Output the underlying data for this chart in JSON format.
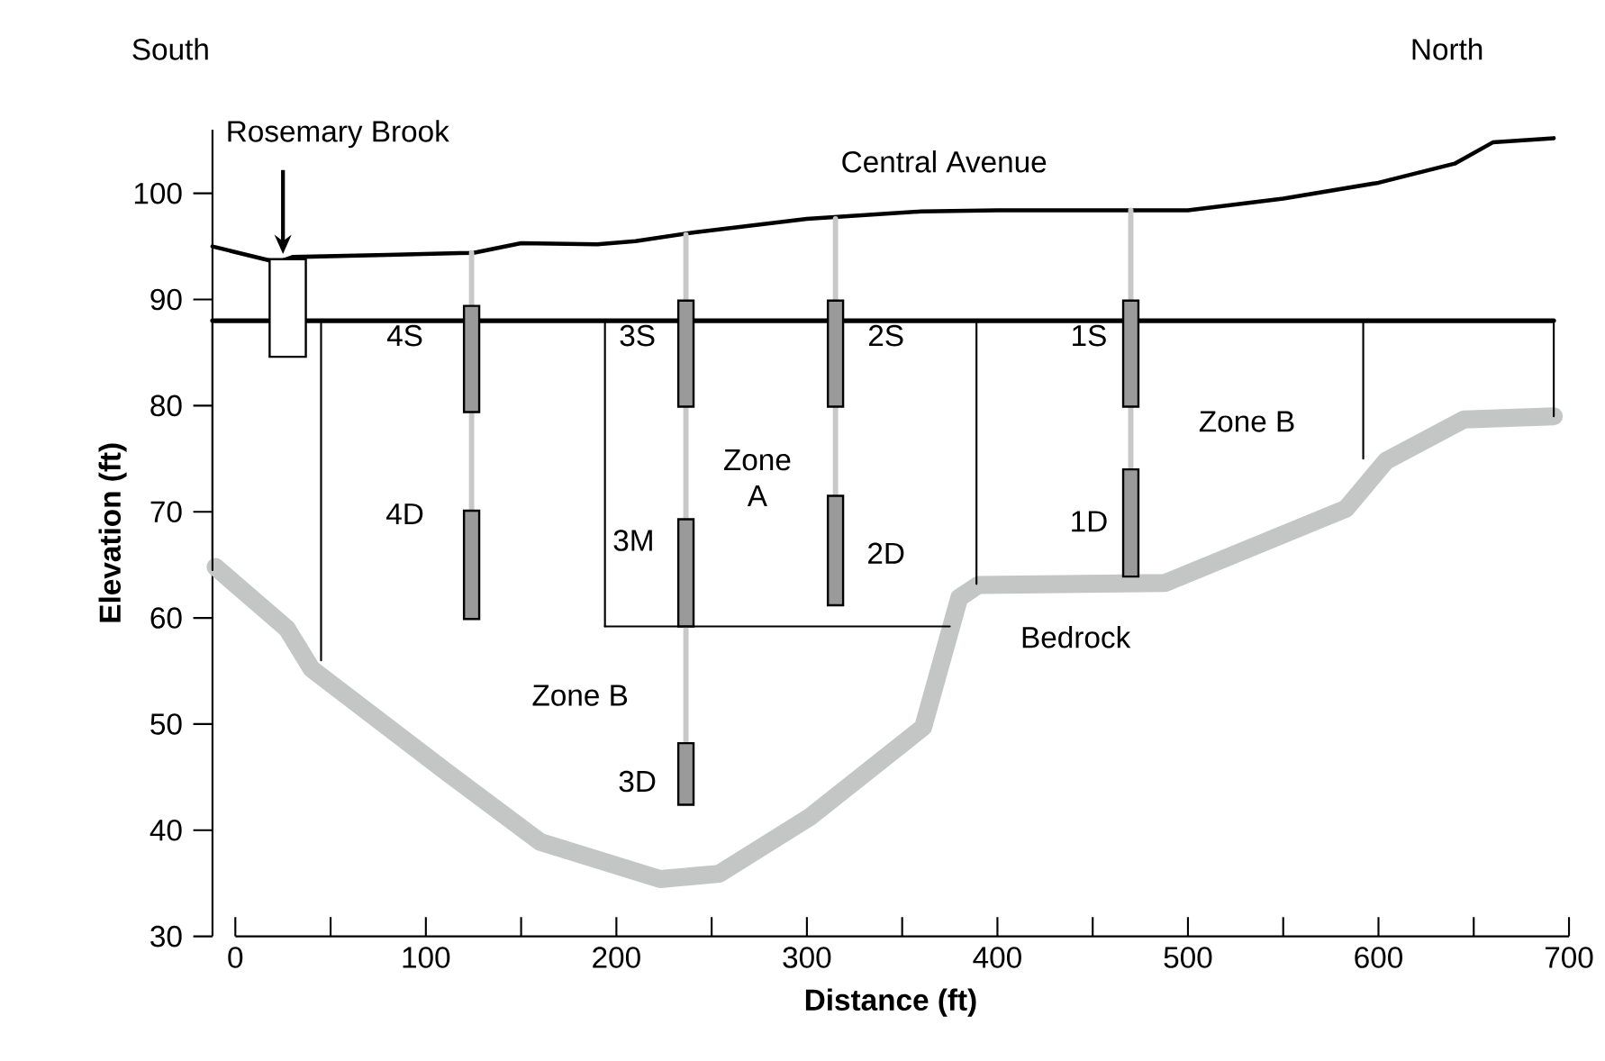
{
  "chart_data": {
    "type": "line",
    "xlabel": "Distance (ft)",
    "ylabel": "Elevation (ft)",
    "xlim": [
      -12,
      700
    ],
    "ylim": [
      30,
      106
    ],
    "xticks": [
      0,
      {
        "value": 50,
        "label": null
      },
      100,
      {
        "value": 150,
        "label": null
      },
      200,
      {
        "value": 250,
        "label": null
      },
      300,
      {
        "value": 350,
        "label": null
      },
      400,
      {
        "value": 450,
        "label": null
      },
      500,
      {
        "value": 550,
        "label": null
      },
      600,
      {
        "value": 650,
        "label": null
      },
      700
    ],
    "yticks": [
      30,
      40,
      50,
      60,
      70,
      80,
      90,
      100
    ],
    "series": [
      {
        "color": "#000000",
        "x": [
          -12,
          22,
          30,
          80,
          125,
          150,
          190,
          210,
          240,
          300,
          360,
          400,
          470,
          500,
          550,
          600,
          640,
          660,
          692
        ],
        "values": [
          95,
          93.5,
          94,
          94.2,
          94.4,
          95.3,
          95.2,
          95.5,
          96.3,
          97.6,
          98.3,
          98.4,
          98.4,
          98.4,
          99.5,
          101,
          102.8,
          104.8,
          105.2
        ]
      },
      {
        "color": "#c4c6c5",
        "x": [
          -10.4,
          27,
          40,
          110,
          160,
          223,
          254,
          302,
          361,
          380,
          390,
          488,
          583,
          604,
          645,
          692
        ],
        "values": [
          64.8,
          59,
          55.2,
          45.6,
          38.9,
          35.4,
          35.9,
          41.3,
          49.7,
          61.9,
          63.1,
          63.3,
          70.3,
          74.8,
          78.7,
          79
        ]
      },
      {
        "color": "#000000",
        "x": [
          -12,
          692
        ],
        "values": [
          88,
          88
        ]
      },
      {
        "type": "bar",
        "color": "#ffffff",
        "x": [
          27.5
        ],
        "base": [
          84.6
        ],
        "values": [
          9.2
        ]
      },
      {
        "color": "#000000",
        "x": [
          -12,
          -12
        ],
        "values": [
          88,
          64.5
        ]
      },
      {
        "color": "#000000",
        "x": [
          45,
          45
        ],
        "values": [
          88,
          56
        ]
      },
      {
        "color": "#000000",
        "x": [
          194,
          194
        ],
        "values": [
          88,
          59.2
        ]
      },
      {
        "color": "#000000",
        "x": [
          194,
          375
        ],
        "values": [
          59.2,
          59.2
        ]
      },
      {
        "color": "#000000",
        "x": [
          389,
          389
        ],
        "values": [
          88,
          63.2
        ]
      },
      {
        "color": "#000000",
        "x": [
          592,
          592
        ],
        "values": [
          88,
          75
        ]
      },
      {
        "color": "#000000",
        "x": [
          692,
          692
        ],
        "values": [
          88,
          79
        ]
      },
      {
        "color": "#c8c8c8",
        "x": [
          124,
          124
        ],
        "values": [
          94.4,
          70.1
        ]
      },
      {
        "color": "#c8c8c8",
        "x": [
          236.5,
          236.5
        ],
        "values": [
          96.1,
          48.2
        ]
      },
      {
        "color": "#c8c8c8",
        "x": [
          315,
          315
        ],
        "values": [
          97.6,
          71.5
        ]
      },
      {
        "color": "#c8c8c8",
        "x": [
          470,
          470
        ],
        "values": [
          98.4,
          74
        ]
      },
      {
        "type": "bar",
        "color": "#9a9a9a",
        "x": [
          124,
          236.5,
          315,
          470
        ],
        "base": [
          79.4,
          79.9,
          79.9,
          79.9
        ],
        "values": [
          10,
          10,
          10,
          10
        ]
      },
      {
        "type": "bar",
        "color": "#9a9a9a",
        "x": [
          124,
          236.5,
          315,
          470
        ],
        "base": [
          59.9,
          59.2,
          61.2,
          63.9
        ],
        "values": [
          10.2,
          10.1,
          10.3,
          10.1
        ]
      },
      {
        "type": "bar",
        "color": "#9a9a9a",
        "x": [
          236.5
        ],
        "base": [
          42.4
        ],
        "values": [
          5.8
        ]
      }
    ],
    "annotations": [
      "Rosemary Brook",
      "Central Avenue",
      "South",
      "North",
      "4S",
      "4D",
      "3S",
      "3M",
      "3D",
      "2S",
      "2D",
      "1S",
      "1D",
      "Zone A",
      "Zone B",
      "Zone B",
      "Bedrock"
    ]
  }
}
